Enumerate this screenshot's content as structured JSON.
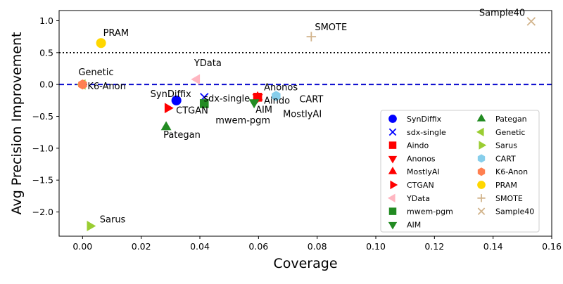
{
  "chart_data": {
    "type": "scatter",
    "xlabel": "Coverage",
    "ylabel": "Avg Precision Improvement",
    "xlim": [
      -0.008,
      0.16
    ],
    "ylim": [
      -2.38,
      1.16
    ],
    "xticks": [
      {
        "v": 0.0,
        "label": "0.00"
      },
      {
        "v": 0.02,
        "label": "0.02"
      },
      {
        "v": 0.04,
        "label": "0.04"
      },
      {
        "v": 0.06,
        "label": "0.06"
      },
      {
        "v": 0.08,
        "label": "0.08"
      },
      {
        "v": 0.1,
        "label": "0.10"
      },
      {
        "v": 0.12,
        "label": "0.12"
      },
      {
        "v": 0.14,
        "label": "0.14"
      },
      {
        "v": 0.16,
        "label": "0.16"
      }
    ],
    "yticks": [
      {
        "v": 1.0,
        "label": "1.0"
      },
      {
        "v": 0.5,
        "label": "0.5"
      },
      {
        "v": 0.0,
        "label": "0.0"
      },
      {
        "v": -0.5,
        "label": "−0.5"
      },
      {
        "v": -1.0,
        "label": "−1.0"
      },
      {
        "v": -1.5,
        "label": "−1.5"
      },
      {
        "v": -2.0,
        "label": "−2.0"
      }
    ],
    "reference_lines": [
      {
        "y": 0.5,
        "style": "dotted",
        "color": "#000000"
      },
      {
        "y": 0.0,
        "style": "dashed",
        "color": "#0000cc"
      }
    ],
    "legend_position": "lower-right",
    "legend_columns": 2,
    "points": [
      {
        "name": "SynDiffix",
        "x": 0.032,
        "y": -0.25,
        "marker": "circle",
        "color": "#0000ff",
        "label": "SynDiffix"
      },
      {
        "name": "sdx-single",
        "x": 0.0415,
        "y": -0.2,
        "marker": "x",
        "color": "#0000ff",
        "label": "sdx-single"
      },
      {
        "name": "Aindo",
        "x": 0.0597,
        "y": -0.2,
        "marker": "square",
        "color": "#ff0000",
        "label": "Aindo"
      },
      {
        "name": "Anonos",
        "x": 0.0597,
        "y": -0.2,
        "marker": "triangle-down",
        "color": "#ff0000",
        "label": "Anonos"
      },
      {
        "name": "MostlyAI",
        "x": 0.0597,
        "y": -0.2,
        "marker": "triangle-up",
        "color": "#ff0000",
        "label": "MostlyAI"
      },
      {
        "name": "CTGAN",
        "x": 0.029,
        "y": -0.37,
        "marker": "triangle-right",
        "color": "#ff0000",
        "label": "CTGAN"
      },
      {
        "name": "YData",
        "x": 0.039,
        "y": 0.08,
        "marker": "triangle-left",
        "color": "#ffb6c1",
        "label": "YData"
      },
      {
        "name": "mwem-pgm",
        "x": 0.0415,
        "y": -0.3,
        "marker": "square",
        "color": "#228b22",
        "label": "mwem-pgm"
      },
      {
        "name": "AIM",
        "x": 0.0585,
        "y": -0.28,
        "marker": "triangle-down",
        "color": "#228b22",
        "label": "AIM"
      },
      {
        "name": "Pategan",
        "x": 0.0285,
        "y": -0.67,
        "marker": "triangle-up",
        "color": "#228b22",
        "label": "Pategan"
      },
      {
        "name": "Genetic",
        "x": 0.0,
        "y": 0.0,
        "marker": "triangle-left",
        "color": "#9acd32",
        "label": "Genetic"
      },
      {
        "name": "Sarus",
        "x": 0.0025,
        "y": -2.22,
        "marker": "triangle-right",
        "color": "#9acd32",
        "label": "Sarus"
      },
      {
        "name": "CART",
        "x": 0.066,
        "y": -0.18,
        "marker": "hexagon",
        "color": "#87ceeb",
        "label": "CART"
      },
      {
        "name": "K6-Anon",
        "x": 0.0,
        "y": 0.0,
        "marker": "hexagon",
        "color": "#ff7f50",
        "label": "K6-Anon"
      },
      {
        "name": "PRAM",
        "x": 0.0063,
        "y": 0.65,
        "marker": "circle",
        "color": "#ffd700",
        "label": "PRAM"
      },
      {
        "name": "SMOTE",
        "x": 0.078,
        "y": 0.75,
        "marker": "plus",
        "color": "#d2b48c",
        "label": "SMOTE"
      },
      {
        "name": "Sample40",
        "x": 0.153,
        "y": 0.99,
        "marker": "x",
        "color": "#d2b48c",
        "label": "Sample40"
      }
    ],
    "mostlyai_label": "MostlyAI"
  }
}
